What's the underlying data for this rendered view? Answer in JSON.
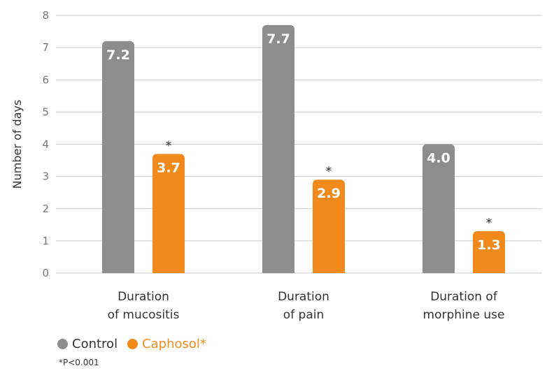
{
  "chart_data": {
    "type": "bar",
    "title": "",
    "ylabel": "Number of days",
    "ylim": [
      0,
      8
    ],
    "yticks": [
      0,
      1,
      2,
      3,
      4,
      5,
      6,
      7,
      8
    ],
    "grid": true,
    "legend_position": "bottom-left",
    "categories": [
      [
        "Duration",
        "of mucositis"
      ],
      [
        "Duration",
        "of pain"
      ],
      [
        "Duration of",
        "morphine use"
      ]
    ],
    "series": [
      {
        "name": "Control",
        "color": "#8c8d8f",
        "values": [
          7.2,
          7.7,
          4.0
        ],
        "labels": [
          "7.2",
          "7.7",
          "4.0"
        ],
        "significant": [
          false,
          false,
          false
        ]
      },
      {
        "name": "Caphosol*",
        "color": "#f08a1c",
        "values": [
          3.7,
          2.9,
          1.3
        ],
        "labels": [
          "3.7",
          "2.9",
          "1.3"
        ],
        "significant": [
          true,
          true,
          true
        ]
      }
    ],
    "significance_marker": "*",
    "footnote": "*P<0.001"
  }
}
